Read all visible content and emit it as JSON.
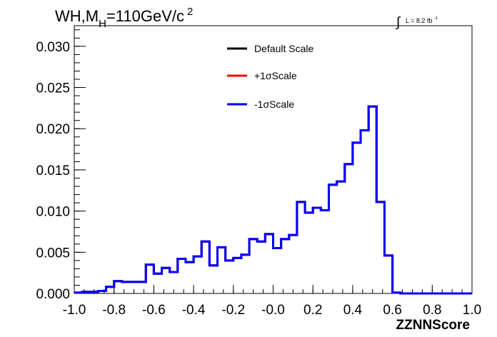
{
  "chart_data": {
    "type": "histogram",
    "title": "WH,M",
    "title_subscript": "H",
    "title_rest": "=110GeV/c",
    "title_superscript": "2",
    "lumi_symbol": "∫",
    "lumi_text": "L = 8.2 fb",
    "lumi_superscript": "-1",
    "xlabel": "ZZNNScore",
    "ylabel": "",
    "xlim": [
      -1.0,
      1.0
    ],
    "ylim": [
      0.0,
      0.0325
    ],
    "x_ticks": [
      "-1.0",
      "-0.8",
      "-0.6",
      "-0.4",
      "-0.2",
      "-0.0",
      "0.2",
      "0.4",
      "0.6",
      "0.8",
      "1.0"
    ],
    "x_tick_values": [
      -1.0,
      -0.8,
      -0.6,
      -0.4,
      -0.2,
      0.0,
      0.2,
      0.4,
      0.6,
      0.8,
      1.0
    ],
    "y_ticks": [
      "0.000",
      "0.005",
      "0.010",
      "0.015",
      "0.020",
      "0.025",
      "0.030"
    ],
    "y_tick_values": [
      0.0,
      0.005,
      0.01,
      0.015,
      0.02,
      0.025,
      0.03
    ],
    "grid": false,
    "legend_position": "top-center",
    "bin_edges_range": [
      -1.0,
      1.0
    ],
    "n_bins": 50,
    "series": [
      {
        "name": "Default Scale",
        "color": "#000000",
        "values": [
          0.0001,
          0.0002,
          0.0002,
          0.0003,
          0.0008,
          0.0015,
          0.0014,
          0.0014,
          0.0014,
          0.0035,
          0.0024,
          0.0031,
          0.0026,
          0.0042,
          0.0038,
          0.0045,
          0.0063,
          0.0034,
          0.0056,
          0.004,
          0.0043,
          0.0047,
          0.0066,
          0.0063,
          0.0072,
          0.0055,
          0.0066,
          0.0071,
          0.0111,
          0.0098,
          0.0104,
          0.0101,
          0.0132,
          0.0136,
          0.0157,
          0.0183,
          0.0198,
          0.0227,
          0.0111,
          0.0046,
          0.0001,
          0.0,
          0.0,
          0.0,
          0.0,
          0.0,
          0.0,
          0.0,
          0.0,
          0.0
        ]
      },
      {
        "name": "+1σScale",
        "color": "#ff0000",
        "values": [
          0.0001,
          0.0002,
          0.0002,
          0.0003,
          0.0008,
          0.0015,
          0.0014,
          0.0014,
          0.0014,
          0.0035,
          0.0024,
          0.0031,
          0.0026,
          0.0042,
          0.0038,
          0.0045,
          0.0063,
          0.0034,
          0.0056,
          0.004,
          0.0043,
          0.0047,
          0.0066,
          0.0063,
          0.0072,
          0.0055,
          0.0066,
          0.0071,
          0.0111,
          0.0098,
          0.0104,
          0.0101,
          0.0132,
          0.0136,
          0.0157,
          0.0183,
          0.0198,
          0.0227,
          0.0111,
          0.0046,
          0.0001,
          0.0,
          0.0,
          0.0,
          0.0,
          0.0,
          0.0,
          0.0,
          0.0,
          0.0
        ]
      },
      {
        "name": "-1σScale",
        "color": "#0000ff",
        "values": [
          0.0001,
          0.0002,
          0.0002,
          0.0003,
          0.0008,
          0.0015,
          0.0014,
          0.0014,
          0.0014,
          0.0035,
          0.0024,
          0.0031,
          0.0026,
          0.0042,
          0.0038,
          0.0045,
          0.0063,
          0.0034,
          0.0056,
          0.004,
          0.0043,
          0.0047,
          0.0066,
          0.0063,
          0.0072,
          0.0055,
          0.0066,
          0.0071,
          0.0111,
          0.0098,
          0.0104,
          0.0101,
          0.0132,
          0.0136,
          0.0157,
          0.0183,
          0.0198,
          0.0227,
          0.0111,
          0.0046,
          0.0001,
          0.0,
          0.0,
          0.0,
          0.0,
          0.0,
          0.0,
          0.0,
          0.0,
          0.0
        ]
      }
    ]
  }
}
